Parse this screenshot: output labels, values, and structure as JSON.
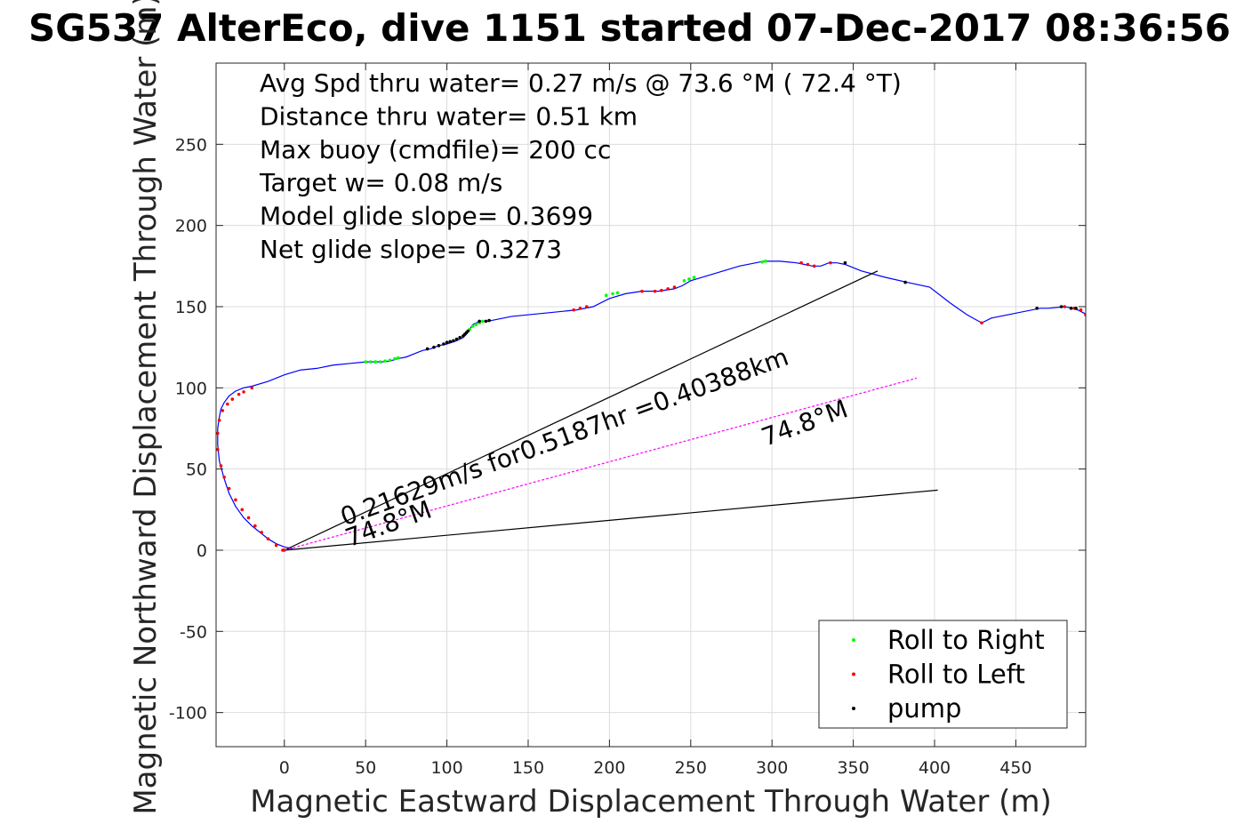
{
  "chart_data": {
    "type": "line",
    "title": "SG537 AlterEco, dive 1151 started 07-Dec-2017 08:36:56",
    "xlabel": "Magnetic Eastward Displacement Through Water (m)",
    "ylabel": "Magnetic Northward Displacement Through Water (m)",
    "xlim": [
      -42,
      493
    ],
    "ylim": [
      -121,
      300
    ],
    "xticks": [
      0,
      50,
      100,
      150,
      200,
      250,
      300,
      350,
      400,
      450
    ],
    "yticks": [
      -100,
      -50,
      0,
      50,
      100,
      150,
      200,
      250
    ],
    "grid": true,
    "legend_position": "bottom-right",
    "info_text": [
      "Avg Spd thru water=  0.27 m/s @  73.6 °M ( 72.4 °T)",
      "Distance thru water=  0.51 km",
      "Max buoy (cmdfile)= 200 cc",
      "Target w= 0.08 m/s",
      "Model glide slope= 0.3699",
      "Net glide slope= 0.3273"
    ],
    "annotations": [
      {
        "text": "0.21629m/s for0.5187hr =0.40388km",
        "x": 37,
        "y": 15,
        "angle_deg": 20
      },
      {
        "text": "74.8°M",
        "x": 40,
        "y": 2,
        "angle_deg": 20
      },
      {
        "text": "74.8°M",
        "x": 296,
        "y": 64,
        "angle_deg": 20
      }
    ],
    "series": [
      {
        "name": "",
        "kind": "line",
        "color": "#0000ff",
        "x": [
          0,
          5,
          0,
          -5,
          -10,
          -15,
          -20,
          -25,
          -30,
          -34,
          -37,
          -40,
          -41,
          -41,
          -40,
          -39,
          -37,
          -34,
          -30,
          -25,
          -20,
          -10,
          0,
          10,
          20,
          30,
          40,
          50,
          55,
          60,
          65,
          70,
          75,
          80,
          85,
          90,
          95,
          100,
          103,
          106,
          108,
          110,
          112,
          114,
          116,
          120,
          125,
          140,
          160,
          180,
          190,
          200,
          210,
          220,
          230,
          240,
          245,
          250,
          260,
          270,
          280,
          290,
          295,
          305,
          315,
          320,
          325,
          330,
          335,
          340,
          345,
          355,
          370,
          383,
          397,
          410,
          420,
          429,
          435,
          450,
          465,
          470,
          480,
          485,
          488,
          490,
          492,
          493
        ],
        "y": [
          0,
          1,
          2,
          4,
          7,
          11,
          15,
          20,
          27,
          35,
          44,
          55,
          65,
          75,
          82,
          87,
          91,
          95,
          98,
          100,
          101,
          104,
          108,
          111,
          112,
          114,
          115,
          116,
          116,
          116,
          116.5,
          118,
          119,
          121,
          123,
          124,
          126,
          127,
          128,
          129,
          130,
          131,
          133,
          136,
          139,
          141,
          141,
          144,
          146,
          148,
          150,
          155,
          158,
          159.5,
          159.5,
          161,
          163,
          166,
          169,
          172,
          175,
          177,
          178,
          178,
          177,
          176,
          175,
          175,
          177,
          177,
          176,
          172,
          168,
          165,
          162,
          152,
          145,
          140,
          143,
          146,
          149,
          149,
          150,
          149,
          148,
          147,
          146,
          145
        ]
      },
      {
        "name": "Roll to Right",
        "kind": "points",
        "color": "#00ff00",
        "x": [
          50,
          53,
          56,
          59,
          62,
          65,
          68,
          70,
          114,
          116,
          118,
          120,
          122,
          198,
          202,
          205,
          246,
          249,
          252,
          294,
          296
        ],
        "y": [
          116,
          116,
          116,
          116,
          116.5,
          117,
          118,
          118.5,
          136,
          138,
          139,
          140,
          141,
          157,
          158,
          158.5,
          166,
          167,
          168,
          177.5,
          178
        ]
      },
      {
        "name": "Roll to Left",
        "kind": "points",
        "color": "#ff0000",
        "x": [
          0,
          -1,
          -5,
          -10,
          -14,
          -18,
          -22,
          -26,
          -30,
          -34,
          -37,
          -39,
          -41,
          -41,
          -40,
          -38,
          -35,
          -32,
          -28,
          -25,
          -20,
          178,
          182,
          186,
          220,
          228,
          232,
          236,
          240,
          318,
          322,
          326,
          336,
          429,
          480,
          486,
          490,
          493
        ],
        "y": [
          0,
          0,
          3,
          7,
          11,
          15,
          20,
          25,
          31,
          38,
          45,
          52,
          62,
          72,
          80,
          86,
          90,
          93,
          96,
          97.5,
          100,
          148,
          149,
          150,
          159.5,
          159.5,
          160,
          161,
          162,
          177,
          176,
          175,
          177,
          140,
          150,
          149,
          148,
          145
        ]
      },
      {
        "name": "pump",
        "kind": "points",
        "color": "#000000",
        "x": [
          88,
          92,
          95,
          98,
          100,
          102,
          104,
          106,
          108,
          110,
          111,
          112,
          113,
          120,
          124,
          126,
          345,
          382,
          463,
          478,
          484,
          487
        ],
        "y": [
          124,
          125,
          126,
          127,
          128,
          128.5,
          129,
          130,
          131,
          132,
          133,
          134,
          135,
          141,
          141,
          141.5,
          177,
          165,
          149,
          150,
          149,
          149
        ]
      },
      {
        "name": "",
        "kind": "line",
        "color": "#000000",
        "x": [
          0,
          365
        ],
        "y": [
          0,
          172
        ]
      },
      {
        "name": "",
        "kind": "line",
        "color": "#000000",
        "x": [
          0,
          402
        ],
        "y": [
          0,
          37
        ]
      },
      {
        "name": "",
        "kind": "line",
        "color": "#ff00ff",
        "dashed": true,
        "x": [
          0,
          389
        ],
        "y": [
          0,
          106
        ]
      }
    ]
  }
}
